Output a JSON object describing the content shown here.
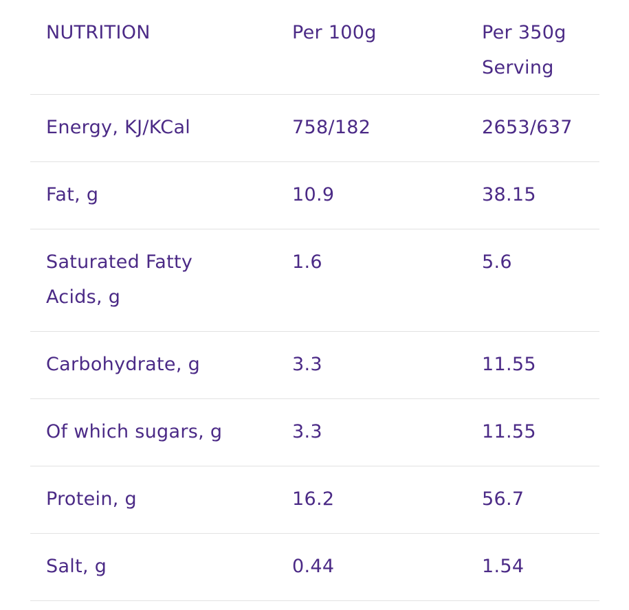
{
  "table": {
    "headers": [
      "NUTRITION",
      "Per 100g",
      "Per 350g Serving"
    ],
    "rows": [
      [
        "Energy, KJ/KCal",
        "758/182",
        "2653/637"
      ],
      [
        "Fat, g",
        "10.9",
        "38.15"
      ],
      [
        "Saturated Fatty Acids, g",
        "1.6",
        "5.6"
      ],
      [
        "Carbohydrate, g",
        "3.3",
        "11.55"
      ],
      [
        "Of which sugars, g",
        "3.3",
        "11.55"
      ],
      [
        "Protein, g",
        "16.2",
        "56.7"
      ],
      [
        "Salt, g",
        "0.44",
        "1.54"
      ]
    ]
  },
  "colors": {
    "text": "#4b2a86",
    "divider": "#e2e2e2"
  }
}
